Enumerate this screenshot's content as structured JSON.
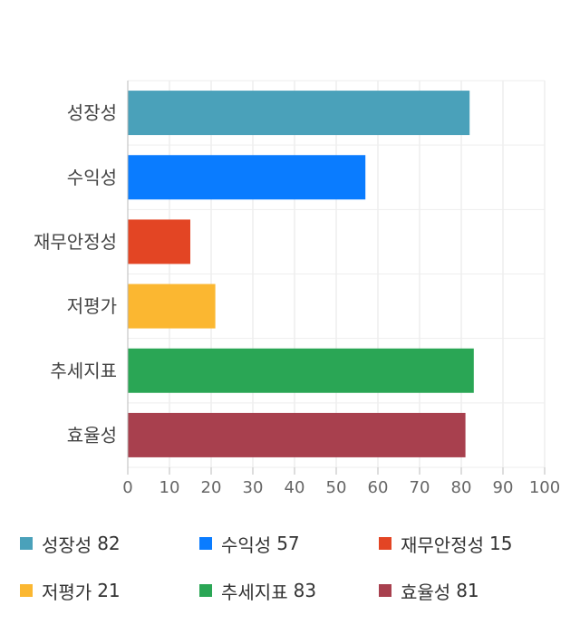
{
  "chart_data": {
    "type": "bar",
    "orientation": "horizontal",
    "categories": [
      "성장성",
      "수익성",
      "재무안정성",
      "저평가",
      "추세지표",
      "효율성"
    ],
    "values": [
      82,
      57,
      15,
      21,
      83,
      81
    ],
    "colors": [
      "#4aa1ba",
      "#0a7cff",
      "#e34524",
      "#fbb731",
      "#2aa655",
      "#a8404e"
    ],
    "title": "",
    "xlabel": "",
    "ylabel": "",
    "xlim": [
      0,
      100
    ],
    "x_ticks": [
      0,
      10,
      20,
      30,
      40,
      50,
      60,
      70,
      80,
      90,
      100
    ],
    "grid": true,
    "legend_position": "bottom"
  }
}
